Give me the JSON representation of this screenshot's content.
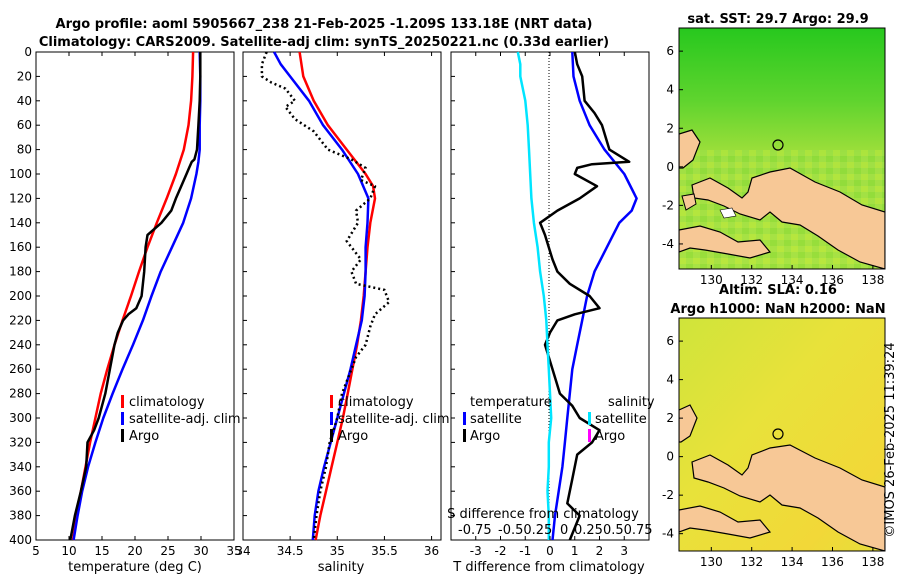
{
  "title_line1": "Argo profile: aoml 5905667_238 21-Feb-2025 -1.209S 133.18E (NRT data)",
  "title_line2": "Climatology: CARS2009. Satellite-adj clim: synTS_20250221.nc (0.33d earlier)",
  "colors": {
    "climatology": "#ff0000",
    "satellite": "#0000ff",
    "argo": "#000000",
    "t_satellite": "#00e5ff",
    "s_argo": "#ff00ff",
    "land": "#f7c896",
    "coast": "#000000"
  },
  "chart_data": [
    {
      "type": "line",
      "name": "temperature",
      "xlabel": "temperature (deg C)",
      "ylabel": "",
      "xlim": [
        5,
        35
      ],
      "ylim": [
        400,
        0
      ],
      "xticks": [
        "5",
        "10",
        "15",
        "20",
        "25",
        "30",
        "35"
      ],
      "yticks": [
        "0",
        "20",
        "40",
        "60",
        "80",
        "100",
        "120",
        "140",
        "160",
        "180",
        "200",
        "220",
        "240",
        "260",
        "280",
        "300",
        "320",
        "340",
        "360",
        "380",
        "400"
      ],
      "legend": [
        "climatology",
        "satellite-adj. clim",
        "Argo"
      ],
      "series": [
        {
          "name": "climatology",
          "color_key": "climatology",
          "dash": "",
          "points": [
            [
              28.8,
              0
            ],
            [
              28.7,
              20
            ],
            [
              28.5,
              40
            ],
            [
              28.1,
              60
            ],
            [
              27.4,
              80
            ],
            [
              26.2,
              100
            ],
            [
              24.8,
              120
            ],
            [
              23.3,
              140
            ],
            [
              21.9,
              160
            ],
            [
              20.6,
              180
            ],
            [
              19.4,
              200
            ],
            [
              18.1,
              220
            ],
            [
              16.9,
              240
            ],
            [
              15.8,
              260
            ],
            [
              14.8,
              280
            ],
            [
              14,
              300
            ],
            [
              13.2,
              320
            ],
            [
              12.5,
              340
            ],
            [
              11.8,
              360
            ],
            [
              11.2,
              380
            ],
            [
              10.6,
              400
            ]
          ]
        },
        {
          "name": "satellite-adj. clim",
          "color_key": "satellite",
          "dash": "",
          "points": [
            [
              29.8,
              0
            ],
            [
              29.9,
              20
            ],
            [
              29.9,
              40
            ],
            [
              29.8,
              60
            ],
            [
              29.8,
              80
            ],
            [
              29.6,
              90
            ],
            [
              29.3,
              100
            ],
            [
              28.5,
              120
            ],
            [
              27.3,
              140
            ],
            [
              25.6,
              160
            ],
            [
              23.9,
              180
            ],
            [
              22.5,
              200
            ],
            [
              21.2,
              220
            ],
            [
              19.7,
              240
            ],
            [
              18.1,
              260
            ],
            [
              16.6,
              280
            ],
            [
              15.2,
              300
            ],
            [
              14,
              320
            ],
            [
              12.9,
              340
            ],
            [
              12,
              360
            ],
            [
              11.3,
              380
            ],
            [
              10.7,
              400
            ]
          ]
        },
        {
          "name": "Argo",
          "color_key": "argo",
          "dash": "",
          "points": [
            [
              29.9,
              0
            ],
            [
              29.9,
              20
            ],
            [
              29.8,
              40
            ],
            [
              29.6,
              60
            ],
            [
              29.4,
              80
            ],
            [
              29,
              88
            ],
            [
              28.6,
              90
            ],
            [
              28.2,
              95
            ],
            [
              27.8,
              100
            ],
            [
              27,
              110
            ],
            [
              26.2,
              120
            ],
            [
              25.5,
              130
            ],
            [
              24,
              140
            ],
            [
              21.9,
              150
            ],
            [
              21.6,
              160
            ],
            [
              21.5,
              170
            ],
            [
              21.4,
              180
            ],
            [
              21.2,
              190
            ],
            [
              21,
              200
            ],
            [
              20.2,
              210
            ],
            [
              19,
              215
            ],
            [
              18.2,
              220
            ],
            [
              17.4,
              230
            ],
            [
              16.9,
              240
            ],
            [
              16.2,
              260
            ],
            [
              15.5,
              280
            ],
            [
              15,
              290
            ],
            [
              14.5,
              300
            ],
            [
              13.8,
              310
            ],
            [
              12.8,
              320
            ],
            [
              12.6,
              340
            ],
            [
              11.8,
              360
            ],
            [
              10.9,
              380
            ],
            [
              10.2,
              400
            ]
          ]
        }
      ]
    },
    {
      "type": "line",
      "name": "salinity",
      "xlabel": "salinity",
      "ylabel": "",
      "xlim": [
        34,
        36.1
      ],
      "ylim": [
        400,
        0
      ],
      "xticks": [
        "34",
        "34.5",
        "35",
        "35.5",
        "36"
      ],
      "legend": [
        "climatology",
        "satellite-adj. clim",
        "Argo"
      ],
      "series": [
        {
          "name": "climatology",
          "color_key": "climatology",
          "dash": "",
          "points": [
            [
              34.6,
              0
            ],
            [
              34.64,
              20
            ],
            [
              34.75,
              40
            ],
            [
              34.9,
              60
            ],
            [
              35.1,
              80
            ],
            [
              35.3,
              100
            ],
            [
              35.38,
              110
            ],
            [
              35.4,
              120
            ],
            [
              35.35,
              140
            ],
            [
              35.32,
              160
            ],
            [
              35.3,
              180
            ],
            [
              35.28,
              200
            ],
            [
              35.25,
              220
            ],
            [
              35.21,
              240
            ],
            [
              35.16,
              260
            ],
            [
              35.11,
              280
            ],
            [
              35.06,
              300
            ],
            [
              35,
              320
            ],
            [
              34.94,
              340
            ],
            [
              34.88,
              360
            ],
            [
              34.82,
              380
            ],
            [
              34.77,
              400
            ]
          ]
        },
        {
          "name": "satellite-adj. clim",
          "color_key": "satellite",
          "dash": "",
          "points": [
            [
              34.33,
              0
            ],
            [
              34.4,
              10
            ],
            [
              34.5,
              20
            ],
            [
              34.7,
              40
            ],
            [
              34.85,
              60
            ],
            [
              35.05,
              80
            ],
            [
              35.22,
              100
            ],
            [
              35.33,
              120
            ],
            [
              35.32,
              140
            ],
            [
              35.3,
              160
            ],
            [
              35.3,
              180
            ],
            [
              35.29,
              200
            ],
            [
              35.26,
              220
            ],
            [
              35.2,
              240
            ],
            [
              35.14,
              260
            ],
            [
              35.07,
              280
            ],
            [
              35,
              300
            ],
            [
              34.93,
              320
            ],
            [
              34.86,
              340
            ],
            [
              34.8,
              360
            ],
            [
              34.76,
              380
            ],
            [
              34.74,
              400
            ]
          ]
        },
        {
          "name": "Argo",
          "color_key": "argo",
          "dash": "2,3",
          "points": [
            [
              34.25,
              0
            ],
            [
              34.2,
              10
            ],
            [
              34.2,
              20
            ],
            [
              34.3,
              25
            ],
            [
              34.45,
              30
            ],
            [
              34.55,
              40
            ],
            [
              34.45,
              45
            ],
            [
              34.55,
              55
            ],
            [
              34.75,
              65
            ],
            [
              34.9,
              80
            ],
            [
              35.15,
              88
            ],
            [
              35.3,
              95
            ],
            [
              35.25,
              105
            ],
            [
              35.4,
              110
            ],
            [
              35.35,
              120
            ],
            [
              35.2,
              130
            ],
            [
              35.22,
              140
            ],
            [
              35.1,
              155
            ],
            [
              35.25,
              170
            ],
            [
              35.15,
              180
            ],
            [
              35.2,
              190
            ],
            [
              35.5,
              195
            ],
            [
              35.55,
              205
            ],
            [
              35.4,
              215
            ],
            [
              35.35,
              225
            ],
            [
              35.3,
              240
            ],
            [
              35.2,
              250
            ],
            [
              35.15,
              260
            ],
            [
              35.05,
              280
            ],
            [
              35,
              300
            ],
            [
              34.92,
              320
            ],
            [
              34.88,
              340
            ],
            [
              34.82,
              360
            ],
            [
              34.78,
              380
            ],
            [
              34.75,
              400
            ]
          ]
        }
      ]
    },
    {
      "type": "line",
      "name": "difference",
      "xlabel": "T difference from climatology",
      "ylabel": "",
      "xlim": [
        -4,
        4
      ],
      "ylim": [
        400,
        0
      ],
      "xticks": [
        "-3",
        "-2",
        "-1",
        "0",
        "1",
        "2",
        "3"
      ],
      "s_axis_label": "S difference from climatology",
      "s_axis_ticks": "-0.75",
      "s_axis_ticks_rest": "-0.50.25",
      "s_axis_ticks_mid": "0",
      "s_axis_ticks_right": "0.250.50.75",
      "legend_temperature_header": "temperature",
      "legend_salinity_header": "salinity",
      "legend_t": [
        "satellite",
        "Argo"
      ],
      "legend_s": [
        "satellite",
        "Argo"
      ],
      "series": [
        {
          "name": "T satellite",
          "color_key": "satellite",
          "dash": "",
          "points": [
            [
              0.9,
              0
            ],
            [
              0.95,
              20
            ],
            [
              1.2,
              40
            ],
            [
              1.6,
              60
            ],
            [
              2.2,
              80
            ],
            [
              3,
              100
            ],
            [
              3.5,
              120
            ],
            [
              3.3,
              130
            ],
            [
              2.8,
              140
            ],
            [
              2.3,
              160
            ],
            [
              1.8,
              180
            ],
            [
              1.5,
              200
            ],
            [
              1.3,
              220
            ],
            [
              1.1,
              240
            ],
            [
              0.9,
              260
            ],
            [
              0.8,
              280
            ],
            [
              0.7,
              300
            ],
            [
              0.6,
              320
            ],
            [
              0.5,
              340
            ],
            [
              0.35,
              360
            ],
            [
              0.2,
              380
            ],
            [
              0.1,
              400
            ]
          ]
        },
        {
          "name": "T Argo",
          "color_key": "argo",
          "dash": "",
          "points": [
            [
              1,
              0
            ],
            [
              1.1,
              10
            ],
            [
              1.3,
              20
            ],
            [
              1.4,
              40
            ],
            [
              1.8,
              50
            ],
            [
              2.1,
              60
            ],
            [
              2.4,
              80
            ],
            [
              3.2,
              90
            ],
            [
              1.7,
              92
            ],
            [
              1.1,
              95
            ],
            [
              1,
              100
            ],
            [
              1.9,
              110
            ],
            [
              1.2,
              120
            ],
            [
              0.3,
              130
            ],
            [
              -0.4,
              140
            ],
            [
              -0.2,
              150
            ],
            [
              0.1,
              170
            ],
            [
              0.3,
              180
            ],
            [
              0.8,
              190
            ],
            [
              1.6,
              200
            ],
            [
              2,
              210
            ],
            [
              1,
              215
            ],
            [
              0.3,
              220
            ],
            [
              0,
              230
            ],
            [
              -0.2,
              240
            ],
            [
              0.1,
              260
            ],
            [
              0.4,
              280
            ],
            [
              0.9,
              290
            ],
            [
              1.2,
              300
            ],
            [
              2,
              310
            ],
            [
              1.7,
              320
            ],
            [
              1.1,
              330
            ],
            [
              0.9,
              350
            ],
            [
              0.7,
              370
            ],
            [
              1.2,
              380
            ],
            [
              0.8,
              400
            ]
          ]
        },
        {
          "name": "S satellite",
          "color_key": "t_satellite",
          "dash": "",
          "points": [
            [
              -1.3,
              0
            ],
            [
              -1.2,
              10
            ],
            [
              -1.2,
              20
            ],
            [
              -1.0,
              40
            ],
            [
              -0.9,
              60
            ],
            [
              -0.85,
              80
            ],
            [
              -0.8,
              100
            ],
            [
              -0.75,
              120
            ],
            [
              -0.65,
              140
            ],
            [
              -0.5,
              160
            ],
            [
              -0.4,
              180
            ],
            [
              -0.25,
              200
            ],
            [
              -0.15,
              220
            ],
            [
              -0.1,
              240
            ],
            [
              -0.05,
              260
            ],
            [
              0,
              280
            ],
            [
              0.05,
              300
            ],
            [
              -0.05,
              320
            ],
            [
              -0.05,
              340
            ],
            [
              -0.1,
              360
            ],
            [
              -0.05,
              380
            ],
            [
              -0.05,
              400
            ]
          ]
        }
      ]
    }
  ],
  "map_top": {
    "title": "sat. SST: 29.7 Argo: 29.9",
    "yticks": [
      "6",
      "4",
      "2",
      "0",
      "-2",
      "-4"
    ],
    "xticks": [
      "130",
      "132",
      "134",
      "136",
      "138"
    ]
  },
  "map_bottom": {
    "title1": "Altim. SLA: 0.16",
    "title2": "Argo h1000: NaN h2000: NaN",
    "yticks": [
      "6",
      "4",
      "2",
      "0",
      "-2",
      "-4"
    ],
    "xticks": [
      "130",
      "132",
      "134",
      "136",
      "138"
    ]
  },
  "credit": "©IMOS 26-Feb-2025 11:39:24"
}
